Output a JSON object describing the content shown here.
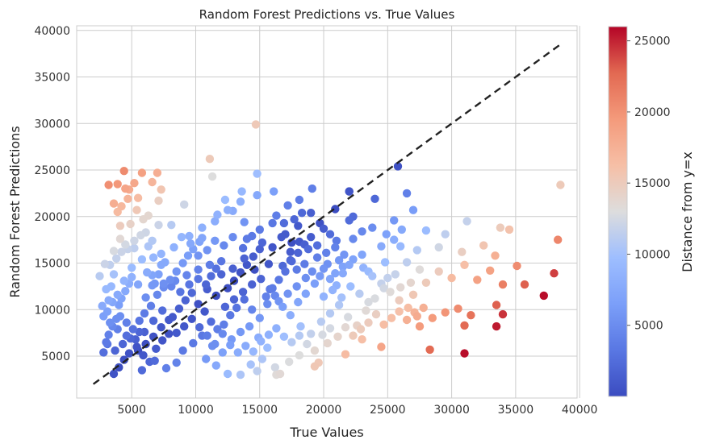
{
  "chart_data": {
    "type": "scatter",
    "title": "Random Forest Predictions vs. True Values",
    "xlabel": "True Values",
    "ylabel": "Random Forest Predictions",
    "xlim": [
      700,
      39800
    ],
    "ylim": [
      500,
      40500
    ],
    "xticks": [
      5000,
      10000,
      15000,
      20000,
      25000,
      30000,
      35000,
      40000
    ],
    "yticks": [
      5000,
      10000,
      15000,
      20000,
      25000,
      30000,
      35000,
      40000
    ],
    "grid": true,
    "reference_line": {
      "label": "y=x",
      "style": "dashed",
      "color": "#222222",
      "from": [
        2000,
        2000
      ],
      "to": [
        38500,
        38500
      ]
    },
    "colorbar": {
      "label": "Distance from y=x",
      "colormap": "coolwarm",
      "range": [
        0,
        26000
      ],
      "ticks": [
        5000,
        10000,
        15000,
        20000,
        25000
      ],
      "low_color": "#3b4cc0",
      "high_color": "#b40426"
    },
    "points": [
      [
        2800,
        5400
      ],
      [
        3000,
        6500
      ],
      [
        3200,
        7300
      ],
      [
        3500,
        8200
      ],
      [
        3800,
        9000
      ],
      [
        4000,
        10500
      ],
      [
        4200,
        11200
      ],
      [
        4500,
        12000
      ],
      [
        4800,
        12800
      ],
      [
        5000,
        13500
      ],
      [
        3200,
        11000
      ],
      [
        3400,
        12500
      ],
      [
        3600,
        13800
      ],
      [
        3300,
        14800
      ],
      [
        3800,
        15500
      ],
      [
        4200,
        16200
      ],
      [
        4500,
        17000
      ],
      [
        5200,
        16600
      ],
      [
        5800,
        15400
      ],
      [
        6200,
        14000
      ],
      [
        3100,
        9800
      ],
      [
        3500,
        10800
      ],
      [
        4100,
        9300
      ],
      [
        4600,
        8600
      ],
      [
        5100,
        7900
      ],
      [
        5600,
        8800
      ],
      [
        6000,
        9600
      ],
      [
        6500,
        10400
      ],
      [
        7000,
        11600
      ],
      [
        7500,
        12400
      ],
      [
        3600,
        3100
      ],
      [
        4000,
        3800
      ],
      [
        4400,
        4600
      ],
      [
        4800,
        5300
      ],
      [
        5400,
        6000
      ],
      [
        5900,
        5100
      ],
      [
        6400,
        4400
      ],
      [
        6900,
        5800
      ],
      [
        7400,
        6700
      ],
      [
        7900,
        7400
      ],
      [
        8000,
        13200
      ],
      [
        8500,
        14100
      ],
      [
        9000,
        15000
      ],
      [
        9400,
        15800
      ],
      [
        9800,
        16500
      ],
      [
        10300,
        17300
      ],
      [
        10800,
        12700
      ],
      [
        11200,
        13600
      ],
      [
        11600,
        14400
      ],
      [
        12000,
        15200
      ],
      [
        8200,
        9200
      ],
      [
        8700,
        10100
      ],
      [
        9200,
        11000
      ],
      [
        9700,
        11800
      ],
      [
        10200,
        10600
      ],
      [
        10700,
        9800
      ],
      [
        11200,
        8700
      ],
      [
        11700,
        7900
      ],
      [
        12200,
        8400
      ],
      [
        12700,
        9400
      ],
      [
        9000,
        5600
      ],
      [
        9800,
        6400
      ],
      [
        10500,
        7200
      ],
      [
        11300,
        6100
      ],
      [
        12100,
        5400
      ],
      [
        12800,
        6800
      ],
      [
        13500,
        7600
      ],
      [
        14200,
        8200
      ],
      [
        14900,
        7000
      ],
      [
        15600,
        5900
      ],
      [
        12500,
        12300
      ],
      [
        13000,
        13100
      ],
      [
        13500,
        14000
      ],
      [
        14000,
        14800
      ],
      [
        14500,
        15700
      ],
      [
        15000,
        16500
      ],
      [
        15500,
        11400
      ],
      [
        16000,
        12300
      ],
      [
        16500,
        13200
      ],
      [
        17000,
        14100
      ],
      [
        13200,
        10200
      ],
      [
        13800,
        11100
      ],
      [
        14400,
        10000
      ],
      [
        15000,
        9100
      ],
      [
        15600,
        10600
      ],
      [
        16200,
        11500
      ],
      [
        16800,
        10300
      ],
      [
        17400,
        9400
      ],
      [
        18000,
        10800
      ],
      [
        18600,
        11700
      ],
      [
        17500,
        15200
      ],
      [
        18000,
        16100
      ],
      [
        18500,
        17000
      ],
      [
        19000,
        17800
      ],
      [
        19500,
        15600
      ],
      [
        20000,
        14400
      ],
      [
        20500,
        13300
      ],
      [
        21000,
        12600
      ],
      [
        21500,
        13900
      ],
      [
        22000,
        14800
      ],
      [
        18200,
        8200
      ],
      [
        19000,
        7400
      ],
      [
        19800,
        8700
      ],
      [
        20500,
        9600
      ],
      [
        21200,
        10500
      ],
      [
        21900,
        9200
      ],
      [
        22600,
        8300
      ],
      [
        23300,
        9900
      ],
      [
        24000,
        11200
      ],
      [
        24700,
        12300
      ],
      [
        14000,
        17600
      ],
      [
        15000,
        18600
      ],
      [
        16000,
        19300
      ],
      [
        17000,
        18100
      ],
      [
        18000,
        19000
      ],
      [
        19000,
        20400
      ],
      [
        20000,
        18700
      ],
      [
        21000,
        17400
      ],
      [
        22000,
        19600
      ],
      [
        23000,
        18400
      ],
      [
        9500,
        17900
      ],
      [
        10500,
        18800
      ],
      [
        11500,
        19500
      ],
      [
        12500,
        20700
      ],
      [
        13500,
        21600
      ],
      [
        14800,
        22300
      ],
      [
        16100,
        22700
      ],
      [
        17200,
        21200
      ],
      [
        18100,
        21800
      ],
      [
        19100,
        23000
      ],
      [
        22000,
        22700
      ],
      [
        24000,
        21900
      ],
      [
        25500,
        19600
      ],
      [
        26500,
        22500
      ],
      [
        27000,
        20700
      ],
      [
        23000,
        15900
      ],
      [
        24500,
        16800
      ],
      [
        25500,
        17500
      ],
      [
        26500,
        15100
      ],
      [
        27500,
        14300
      ],
      [
        25000,
        13400
      ],
      [
        26000,
        12400
      ],
      [
        27000,
        11600
      ],
      [
        28000,
        12900
      ],
      [
        29000,
        14100
      ],
      [
        30000,
        13400
      ],
      [
        31000,
        14800
      ],
      [
        32000,
        13200
      ],
      [
        33000,
        14200
      ],
      [
        34000,
        12700
      ],
      [
        27800,
        10200
      ],
      [
        28500,
        9100
      ],
      [
        29500,
        9700
      ],
      [
        30500,
        10100
      ],
      [
        31500,
        9400
      ],
      [
        33500,
        10500
      ],
      [
        34000,
        9500
      ],
      [
        31000,
        8300
      ],
      [
        33500,
        8200
      ],
      [
        28300,
        5700
      ],
      [
        31000,
        5300
      ],
      [
        37200,
        11500
      ],
      [
        38000,
        13900
      ],
      [
        38300,
        17500
      ],
      [
        38500,
        23400
      ],
      [
        35700,
        12700
      ],
      [
        35100,
        14700
      ],
      [
        33400,
        15800
      ],
      [
        33800,
        18800
      ],
      [
        34500,
        18600
      ],
      [
        31200,
        19500
      ],
      [
        29500,
        18100
      ],
      [
        28000,
        18500
      ],
      [
        32500,
        16900
      ],
      [
        30800,
        16200
      ],
      [
        29000,
        16700
      ],
      [
        27300,
        16400
      ],
      [
        26000,
        16800
      ],
      [
        25800,
        25400
      ],
      [
        22000,
        22700
      ],
      [
        22300,
        17600
      ],
      [
        20500,
        18100
      ],
      [
        17500,
        17200
      ],
      [
        21200,
        15300
      ],
      [
        23500,
        14100
      ],
      [
        24800,
        15100
      ],
      [
        25600,
        13800
      ],
      [
        26800,
        12900
      ],
      [
        27500,
        8200
      ],
      [
        24500,
        6000
      ],
      [
        23000,
        6800
      ],
      [
        21700,
        5200
      ],
      [
        20300,
        6400
      ],
      [
        19600,
        4300
      ],
      [
        19300,
        3900
      ],
      [
        18100,
        5100
      ],
      [
        17300,
        4400
      ],
      [
        16200,
        3800
      ],
      [
        15200,
        4700
      ],
      [
        14300,
        4100
      ],
      [
        13500,
        3000
      ],
      [
        12500,
        3100
      ],
      [
        11600,
        4000
      ],
      [
        10800,
        4700
      ],
      [
        16300,
        3000
      ],
      [
        14800,
        3400
      ],
      [
        16600,
        3100
      ],
      [
        8500,
        4300
      ],
      [
        7700,
        3700
      ],
      [
        6800,
        4500
      ],
      [
        5800,
        3500
      ],
      [
        5600,
        7600
      ],
      [
        6800,
        12800
      ],
      [
        7300,
        16000
      ],
      [
        6600,
        17400
      ],
      [
        6100,
        18300
      ],
      [
        5900,
        19700
      ],
      [
        5400,
        20700
      ],
      [
        4700,
        21900
      ],
      [
        4200,
        21100
      ],
      [
        3900,
        20500
      ],
      [
        4100,
        19000
      ],
      [
        4500,
        23000
      ],
      [
        4800,
        22900
      ],
      [
        3900,
        23500
      ],
      [
        4400,
        24900
      ],
      [
        3600,
        21400
      ],
      [
        3200,
        23400
      ],
      [
        5500,
        22000
      ],
      [
        5800,
        24700
      ],
      [
        6600,
        23700
      ],
      [
        7000,
        24700
      ],
      [
        7300,
        22900
      ],
      [
        7100,
        21700
      ],
      [
        5200,
        23600
      ],
      [
        4900,
        19200
      ],
      [
        6300,
        20100
      ],
      [
        7100,
        19100
      ],
      [
        8100,
        19100
      ],
      [
        9100,
        21300
      ],
      [
        11100,
        26200
      ],
      [
        11300,
        24300
      ],
      [
        14700,
        29900
      ],
      [
        14800,
        24600
      ],
      [
        12300,
        21800
      ],
      [
        13600,
        22700
      ],
      [
        10500,
        17700
      ],
      [
        11700,
        20200
      ],
      [
        12900,
        20600
      ],
      [
        13800,
        19400
      ],
      [
        16300,
        20100
      ],
      [
        16900,
        19300
      ],
      [
        17700,
        19700
      ],
      [
        18300,
        20400
      ],
      [
        19700,
        19300
      ],
      [
        20900,
        20800
      ],
      [
        22300,
        20000
      ],
      [
        23800,
        18800
      ],
      [
        24900,
        18100
      ],
      [
        26100,
        18600
      ],
      [
        2500,
        13600
      ],
      [
        2900,
        14900
      ],
      [
        3600,
        16300
      ],
      [
        4100,
        17600
      ],
      [
        4700,
        16500
      ],
      [
        5200,
        17400
      ],
      [
        5700,
        18000
      ],
      [
        6300,
        16800
      ],
      [
        6700,
        15600
      ],
      [
        7300,
        14800
      ],
      [
        2700,
        10400
      ],
      [
        3000,
        12200
      ],
      [
        3900,
        11600
      ],
      [
        4400,
        13100
      ],
      [
        5000,
        14500
      ],
      [
        5500,
        12700
      ],
      [
        6100,
        11300
      ],
      [
        6600,
        12600
      ],
      [
        7100,
        13800
      ],
      [
        7600,
        15100
      ],
      [
        8300,
        16700
      ],
      [
        8900,
        17800
      ],
      [
        9600,
        17100
      ],
      [
        10200,
        15800
      ],
      [
        10900,
        16400
      ],
      [
        11500,
        17400
      ],
      [
        12200,
        16900
      ],
      [
        12900,
        17800
      ],
      [
        13700,
        16600
      ],
      [
        14400,
        17900
      ],
      [
        15200,
        17200
      ],
      [
        16000,
        16700
      ],
      [
        16700,
        17800
      ],
      [
        17400,
        16200
      ],
      [
        18100,
        17300
      ],
      [
        18800,
        16500
      ],
      [
        19500,
        16900
      ],
      [
        20200,
        16100
      ],
      [
        20900,
        16700
      ],
      [
        21600,
        15900
      ],
      [
        22300,
        15400
      ],
      [
        23100,
        14500
      ],
      [
        23800,
        13600
      ],
      [
        24500,
        12800
      ],
      [
        25200,
        11900
      ],
      [
        25900,
        11000
      ],
      [
        26600,
        10200
      ],
      [
        27300,
        9300
      ],
      [
        23500,
        10800
      ],
      [
        22800,
        11700
      ],
      [
        22100,
        12500
      ],
      [
        21400,
        11300
      ],
      [
        20700,
        12100
      ],
      [
        20000,
        11400
      ],
      [
        19300,
        12800
      ],
      [
        18600,
        13400
      ],
      [
        17900,
        12500
      ],
      [
        17200,
        11700
      ],
      [
        16500,
        10900
      ],
      [
        15800,
        12200
      ],
      [
        15100,
        13300
      ],
      [
        14400,
        12700
      ],
      [
        13700,
        11900
      ],
      [
        13000,
        11100
      ],
      [
        12300,
        10300
      ],
      [
        11600,
        11500
      ],
      [
        10900,
        12200
      ],
      [
        10200,
        13300
      ],
      [
        9500,
        12700
      ],
      [
        8800,
        11900
      ],
      [
        8100,
        12500
      ],
      [
        7400,
        9900
      ],
      [
        6700,
        8800
      ],
      [
        6000,
        7600
      ],
      [
        5300,
        6800
      ],
      [
        4600,
        7200
      ],
      [
        3900,
        7900
      ],
      [
        3300,
        8600
      ],
      [
        2800,
        9300
      ],
      [
        3100,
        6300
      ],
      [
        3700,
        5600
      ],
      [
        4300,
        6300
      ],
      [
        4900,
        6900
      ],
      [
        5500,
        5600
      ],
      [
        6100,
        6300
      ],
      [
        6700,
        7100
      ],
      [
        7300,
        8100
      ],
      [
        7900,
        8900
      ],
      [
        8500,
        7500
      ],
      [
        9100,
        8200
      ],
      [
        9700,
        9000
      ],
      [
        10300,
        8100
      ],
      [
        10900,
        7200
      ],
      [
        11500,
        6300
      ],
      [
        12100,
        7400
      ],
      [
        12700,
        6200
      ],
      [
        13300,
        5400
      ],
      [
        13900,
        6100
      ],
      [
        14500,
        5500
      ],
      [
        15100,
        6600
      ],
      [
        15700,
        7300
      ],
      [
        16300,
        8000
      ],
      [
        16900,
        7100
      ],
      [
        17500,
        6500
      ],
      [
        18100,
        7200
      ],
      [
        18700,
        6300
      ],
      [
        19300,
        5600
      ],
      [
        19900,
        7300
      ],
      [
        20500,
        8000
      ],
      [
        21100,
        7100
      ],
      [
        21700,
        8100
      ],
      [
        22300,
        7200
      ],
      [
        22900,
        7900
      ],
      [
        23500,
        8600
      ],
      [
        24100,
        9500
      ],
      [
        24700,
        8400
      ],
      [
        25300,
        9100
      ],
      [
        25900,
        9800
      ],
      [
        26500,
        8900
      ],
      [
        27100,
        9700
      ],
      [
        16800,
        14700
      ],
      [
        17400,
        15300
      ],
      [
        17900,
        14300
      ],
      [
        18500,
        14900
      ],
      [
        19100,
        14100
      ],
      [
        19700,
        13600
      ],
      [
        20300,
        14900
      ],
      [
        20900,
        13900
      ],
      [
        21500,
        14600
      ],
      [
        15700,
        14900
      ],
      [
        14600,
        14300
      ],
      [
        13800,
        15500
      ],
      [
        12900,
        14400
      ],
      [
        12000,
        13800
      ],
      [
        11100,
        14800
      ],
      [
        10200,
        14300
      ],
      [
        9300,
        13700
      ],
      [
        8400,
        13100
      ],
      [
        7500,
        12800
      ],
      [
        6600,
        13700
      ]
    ]
  }
}
